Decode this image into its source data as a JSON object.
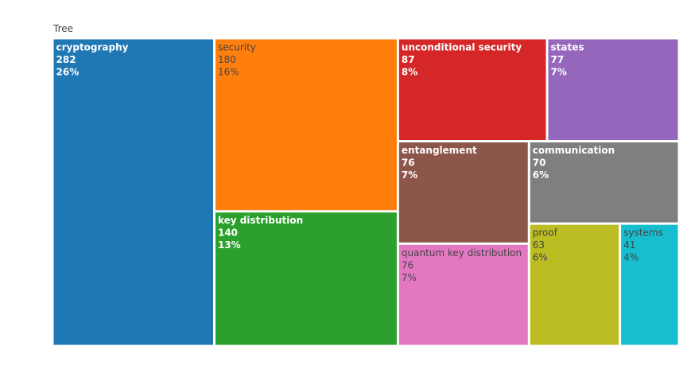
{
  "chart_data": {
    "type": "treemap",
    "title": "Tree",
    "items": [
      {
        "label": "cryptography",
        "value": 282,
        "percent": "26%",
        "color": "#1f77b4",
        "text_color": "#ffffff",
        "bold": true
      },
      {
        "label": "security",
        "value": 180,
        "percent": "16%",
        "color": "#ff7f0e",
        "text_color": "#444444",
        "bold": false
      },
      {
        "label": "key distribution",
        "value": 140,
        "percent": "13%",
        "color": "#2ca02c",
        "text_color": "#ffffff",
        "bold": true
      },
      {
        "label": "unconditional security",
        "value": 87,
        "percent": "8%",
        "color": "#d62728",
        "text_color": "#ffffff",
        "bold": true
      },
      {
        "label": "states",
        "value": 77,
        "percent": "7%",
        "color": "#9467bd",
        "text_color": "#ffffff",
        "bold": true
      },
      {
        "label": "entanglement",
        "value": 76,
        "percent": "7%",
        "color": "#8c564b",
        "text_color": "#ffffff",
        "bold": true
      },
      {
        "label": "quantum key distribution",
        "value": 76,
        "percent": "7%",
        "color": "#e377c2",
        "text_color": "#444444",
        "bold": false
      },
      {
        "label": "communication",
        "value": 70,
        "percent": "6%",
        "color": "#7f7f7f",
        "text_color": "#ffffff",
        "bold": true
      },
      {
        "label": "proof",
        "value": 63,
        "percent": "6%",
        "color": "#bcbd22",
        "text_color": "#444444",
        "bold": false
      },
      {
        "label": "systems",
        "value": 41,
        "percent": "4%",
        "color": "#17becf",
        "text_color": "#444444",
        "bold": false
      }
    ]
  }
}
